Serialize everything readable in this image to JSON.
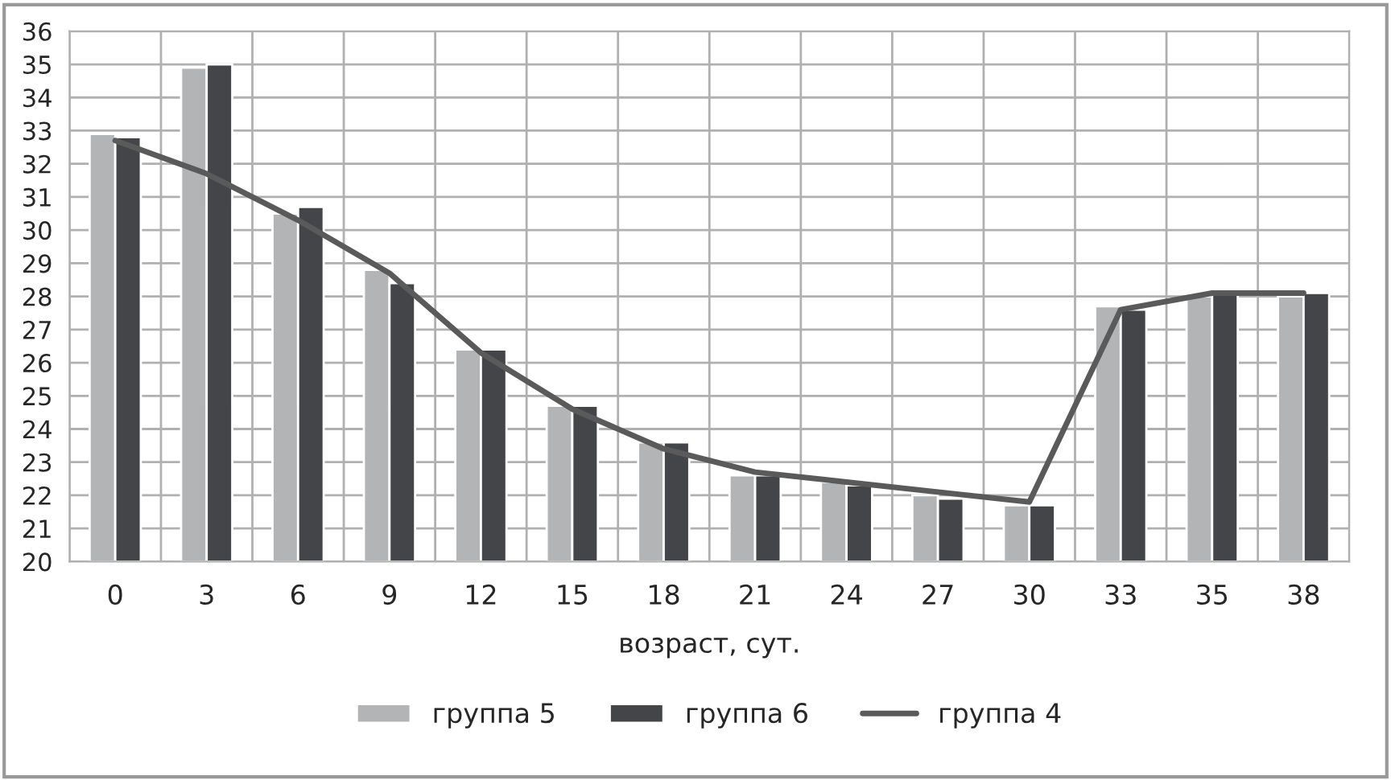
{
  "chart_data": {
    "type": "bar",
    "xlabel": "возраст, сут.",
    "categories": [
      "0",
      "3",
      "6",
      "9",
      "12",
      "15",
      "18",
      "21",
      "24",
      "27",
      "30",
      "33",
      "35",
      "38"
    ],
    "series": [
      {
        "name": "группа 5",
        "color": "#b3b4b6",
        "values": [
          32.9,
          34.9,
          30.5,
          28.8,
          26.4,
          24.7,
          23.6,
          22.6,
          22.4,
          22.0,
          21.7,
          27.7,
          28.0,
          28.0
        ]
      },
      {
        "name": "группа 6",
        "color": "#444548",
        "values": [
          32.8,
          35.0,
          30.7,
          28.4,
          26.4,
          24.7,
          23.6,
          22.6,
          22.3,
          21.9,
          21.7,
          27.6,
          28.1,
          28.1
        ]
      },
      {
        "name": "группа 4",
        "type": "line",
        "color": "#5a5a5a",
        "values": [
          32.7,
          31.7,
          30.3,
          28.7,
          26.3,
          24.6,
          23.4,
          22.7,
          22.4,
          22.1,
          21.8,
          27.6,
          28.1,
          28.1
        ]
      }
    ],
    "ylim": [
      20,
      36
    ],
    "yticks": [
      20,
      21,
      22,
      23,
      24,
      25,
      26,
      27,
      28,
      29,
      30,
      31,
      32,
      33,
      34,
      35,
      36
    ],
    "grid": true,
    "legend": "bottom"
  }
}
